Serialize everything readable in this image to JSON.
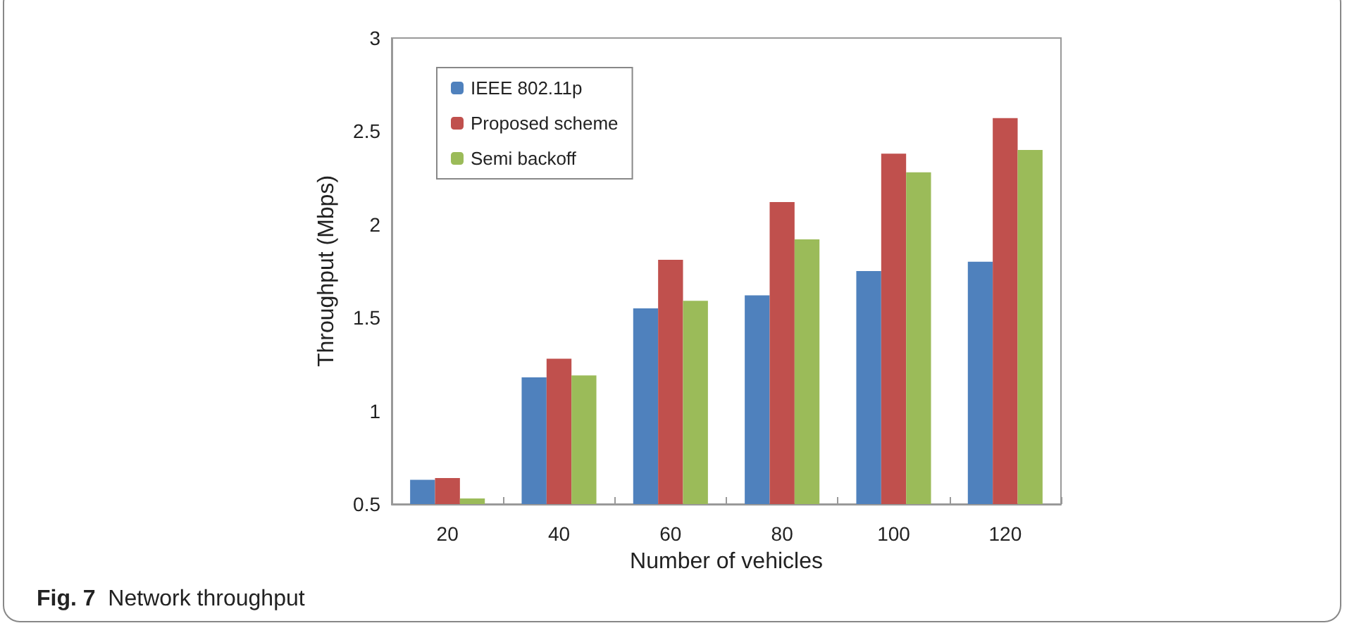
{
  "chart_data": {
    "type": "bar",
    "xlabel": "Number of vehicles",
    "ylabel": "Throughput (Mbps)",
    "annotations": [
      "Fig. 7  Network throughput"
    ],
    "categories": [
      "20",
      "40",
      "60",
      "80",
      "100",
      "120"
    ],
    "series": [
      {
        "name": "IEEE 802.11p",
        "color": "#4f81bd",
        "values": [
          0.63,
          1.18,
          1.55,
          1.62,
          1.75,
          1.8
        ]
      },
      {
        "name": "Proposed scheme",
        "color": "#c0504d",
        "values": [
          0.64,
          1.28,
          1.81,
          2.12,
          2.38,
          2.57
        ]
      },
      {
        "name": "Semi backoff",
        "color": "#9bbb59",
        "values": [
          0.53,
          1.19,
          1.59,
          1.92,
          2.28,
          2.4
        ]
      }
    ],
    "ylim": [
      0.5,
      3
    ],
    "yticks": [
      0.5,
      1,
      1.5,
      2,
      2.5,
      3
    ],
    "grid": false,
    "legend": "top left"
  }
}
